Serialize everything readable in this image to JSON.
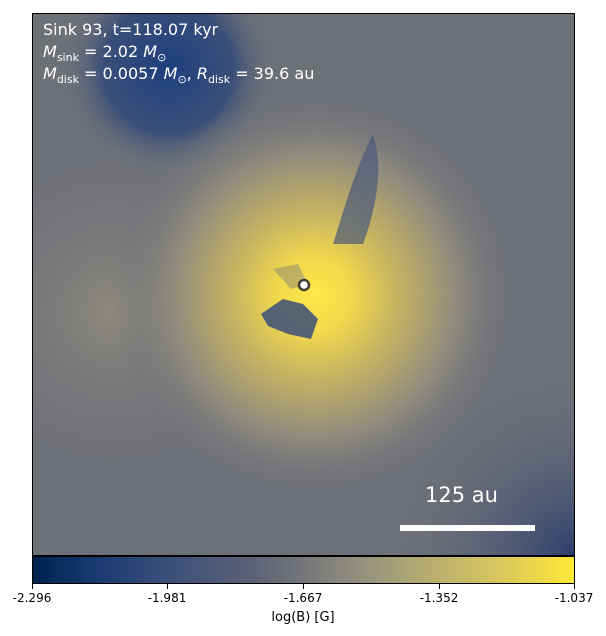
{
  "header": {
    "line1": "Sink 93, t=118.07 kyr",
    "msink_value": "= 2.02",
    "mdisk_value": "= 0.0057",
    "rdisk_value": "= 39.6 au"
  },
  "scale_bar": {
    "label": "125 au"
  },
  "colorbar": {
    "label": "log(B) [G]",
    "ticks": [
      "-2.296",
      "-1.981",
      "-1.667",
      "-1.352",
      "-1.037"
    ],
    "colors": [
      "#00224e",
      "#3b4f79",
      "#75767a",
      "#b4ab72",
      "#fee838"
    ]
  }
}
